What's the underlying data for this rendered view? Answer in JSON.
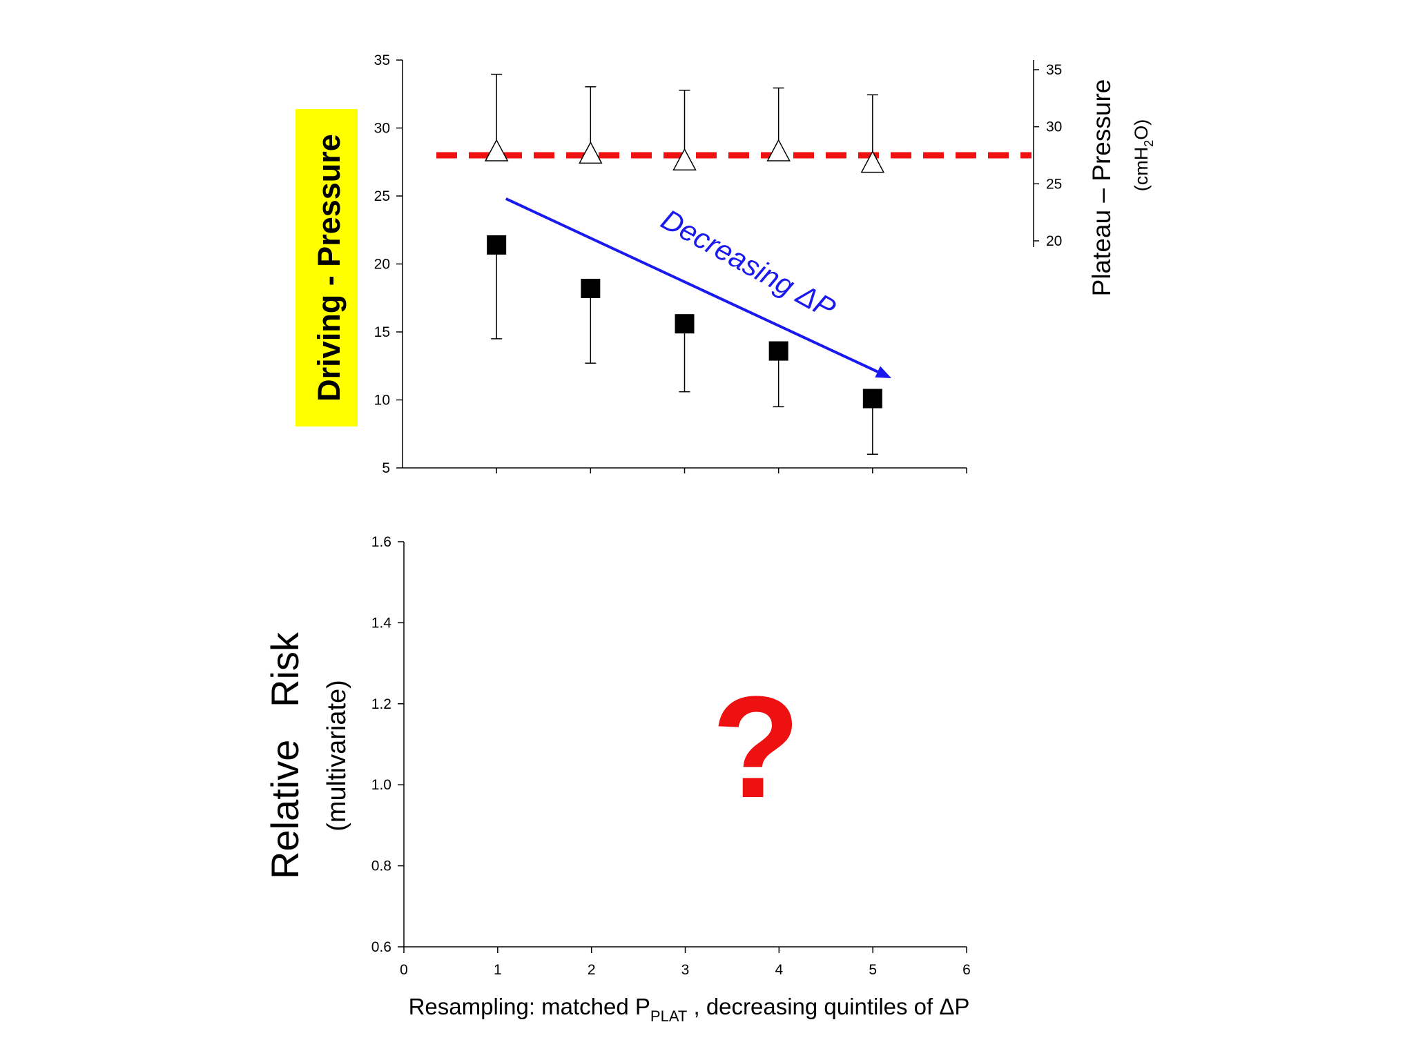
{
  "chart_data": [
    {
      "type": "scatter",
      "ylabel": "Driving - Pressure",
      "ylabel_highlight_color": "#ffff00",
      "ylim": [
        5,
        35
      ],
      "yticks": [
        5,
        10,
        15,
        20,
        25,
        30,
        35
      ],
      "xlim": [
        0,
        6
      ],
      "x": [
        1,
        2,
        3,
        4,
        5
      ],
      "series": [
        {
          "marker": "square",
          "axis": "left",
          "color": "#000000",
          "values": [
            21.4,
            18.2,
            15.6,
            13.6,
            10.1
          ],
          "error_lower": [
            14.5,
            12.7,
            10.6,
            9.5,
            6.0
          ]
        },
        {
          "marker": "open-triangle",
          "axis": "right",
          "color": "#000000",
          "values": [
            27.8,
            27.6,
            27.0,
            27.8,
            26.8
          ],
          "error_upper": [
            34.6,
            33.5,
            33.2,
            33.4,
            32.8
          ]
        }
      ],
      "reference_line": {
        "y": 27.5,
        "style": "dashed",
        "color": "#ee1111"
      },
      "trend_arrow": {
        "from": [
          1.1,
          24.8
        ],
        "to": [
          5.2,
          11.6
        ],
        "color": "#1a1aee"
      },
      "annotation": "Decreasing ΔP",
      "annotation_color": "#1a1aee",
      "y2label": "Plateau – Pressure",
      "y2unit_prefix": "(cmH",
      "y2unit_sub": "2",
      "y2unit_suffix": "O)",
      "y2ticks": [
        20,
        25,
        30,
        35
      ]
    },
    {
      "type": "scatter",
      "ylabel": "Relative   Risk",
      "ylabel_sub": "(multivariate)",
      "ylim": [
        0.6,
        1.6
      ],
      "yticks": [
        "0.6",
        "0.8",
        "1.0",
        "1.2",
        "1.4",
        "1.6"
      ],
      "xlim": [
        0,
        6
      ],
      "xticks": [
        "0",
        "1",
        "2",
        "3",
        "4",
        "5",
        "6"
      ],
      "xlabel_prefix": "Resampling: matched P",
      "xlabel_sub": "PLAT",
      "xlabel_suffix": " , decreasing quintiles of ΔP",
      "annotation": "?",
      "annotation_color": "#ee1111",
      "series": []
    }
  ]
}
